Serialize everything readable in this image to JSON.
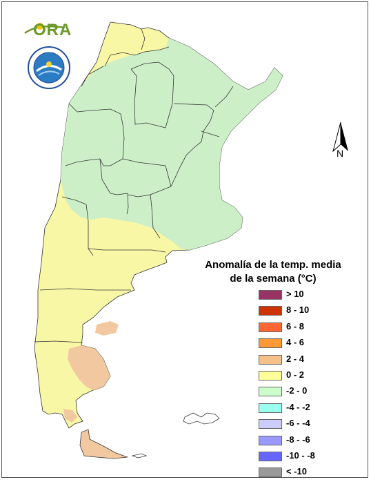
{
  "logos": {
    "ora_text": "ORA",
    "smn_icon": "smn-argentina-seal-icon"
  },
  "north_arrow": {
    "label": "N",
    "icon": "north-arrow-icon"
  },
  "legend": {
    "title_line1": "Anomalía de la temp. media",
    "title_line2": "de la semana (°C)",
    "items": [
      {
        "label": "> 10",
        "color": "#993366"
      },
      {
        "label": "8 - 10",
        "color": "#cc3300"
      },
      {
        "label": "6 - 8",
        "color": "#ff6633"
      },
      {
        "label": "4 - 6",
        "color": "#ff9933"
      },
      {
        "label": "2 - 4",
        "color": "#f7c08a"
      },
      {
        "label": "0 - 2",
        "color": "#ffff99"
      },
      {
        "label": "-2 - 0",
        "color": "#ccffcc"
      },
      {
        "label": "-4 - -2",
        "color": "#99ffee"
      },
      {
        "label": "-6 - -4",
        "color": "#ccccff"
      },
      {
        "label": "-8 - -6",
        "color": "#9999ff"
      },
      {
        "label": "-10 - -8",
        "color": "#6666ff"
      },
      {
        "label": "< -10",
        "color": "#999999"
      }
    ]
  },
  "map_colors": {
    "anomaly_0_2": "#f8f7a6",
    "anomaly_2_4": "#f2c8a0",
    "anomaly_minus2_0": "#ccefc8",
    "border": "#333333"
  }
}
